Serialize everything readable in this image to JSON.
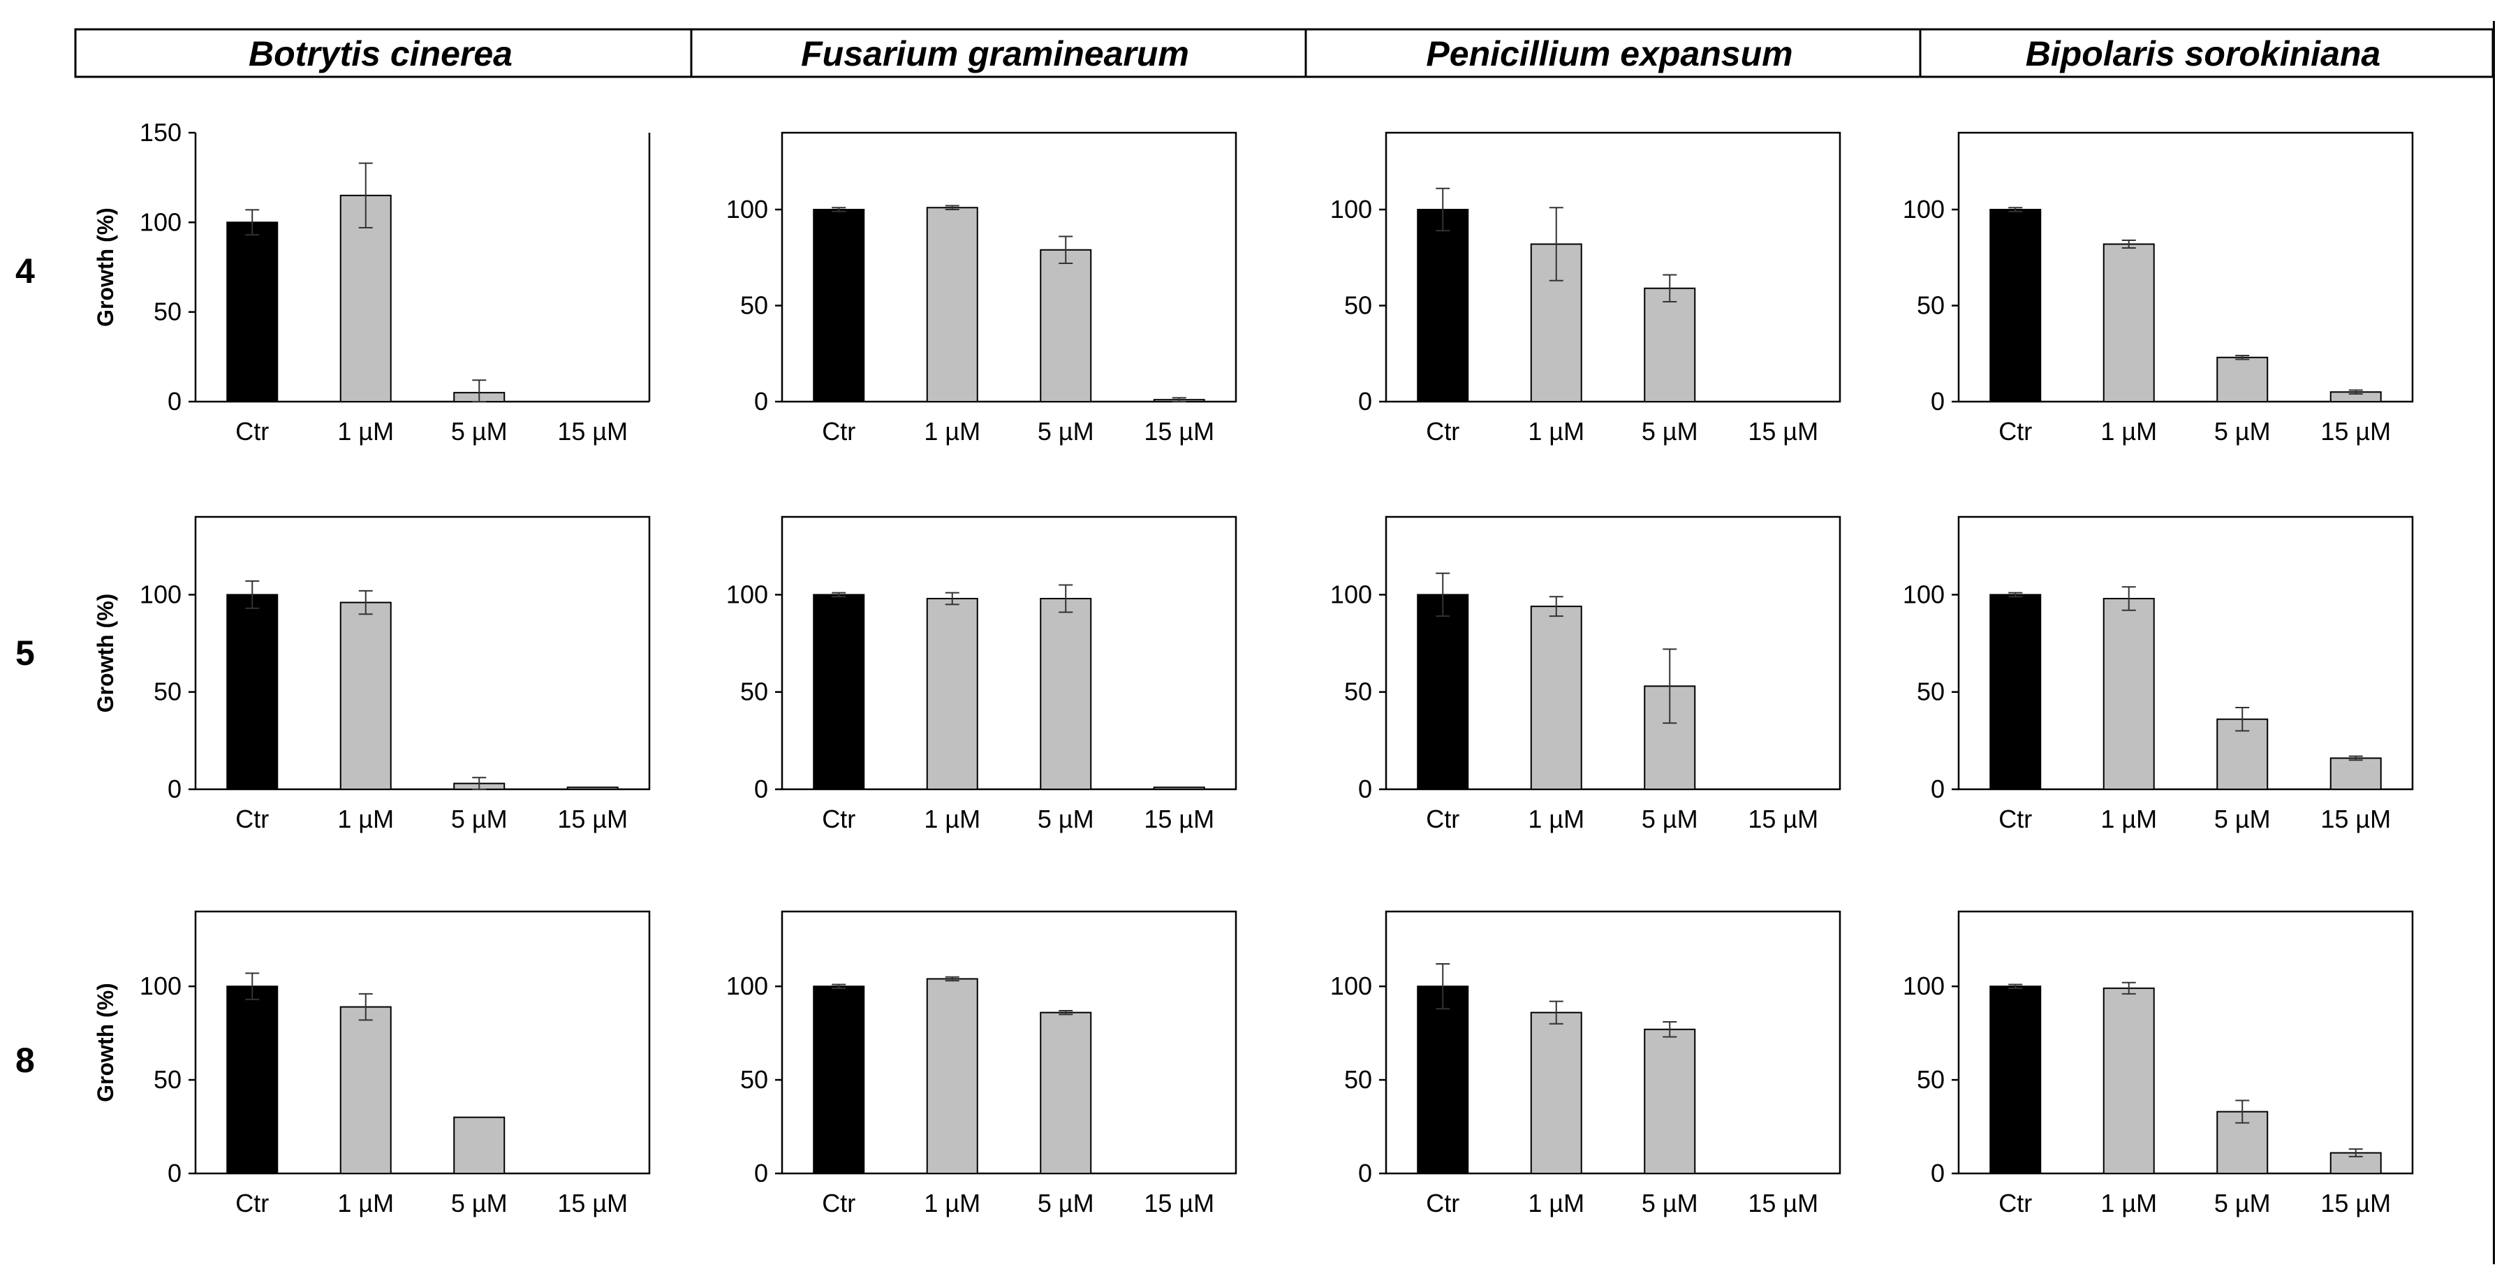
{
  "figure": {
    "columns": [
      "Botrytis cinerea",
      "Fusarium graminearum",
      "Penicillium expansum",
      "Bipolaris sorokiniana"
    ],
    "rows": [
      "4",
      "5",
      "8"
    ],
    "ylabel": "Growth (%)"
  },
  "colors": {
    "control": "#000000",
    "treated": "#c0c0c0",
    "frame": "#000000"
  },
  "chart_data": [
    {
      "type": "bar",
      "row": "4",
      "organism": "Botrytis cinerea",
      "categories": [
        "Ctr",
        "1 µM",
        "5 µM",
        "15 µM"
      ],
      "values": [
        100,
        115,
        5,
        0
      ],
      "errors": [
        7,
        18,
        7,
        0
      ],
      "yticks": [
        0,
        50,
        100,
        150
      ],
      "ylim": [
        0,
        150
      ],
      "ylabel": "Growth (%)",
      "show_ylabel": true,
      "frame": "axes"
    },
    {
      "type": "bar",
      "row": "4",
      "organism": "Fusarium graminearum",
      "categories": [
        "Ctr",
        "1 µM",
        "5 µM",
        "15 µM"
      ],
      "values": [
        100,
        101,
        79,
        1
      ],
      "errors": [
        1,
        1,
        7,
        1
      ],
      "yticks": [
        0,
        50,
        100
      ],
      "ylim": [
        0,
        140
      ],
      "ylabel": "",
      "show_ylabel": false,
      "frame": "box"
    },
    {
      "type": "bar",
      "row": "4",
      "organism": "Penicillium expansum",
      "categories": [
        "Ctr",
        "1 µM",
        "5 µM",
        "15 µM"
      ],
      "values": [
        100,
        82,
        59,
        0
      ],
      "errors": [
        11,
        19,
        7,
        0
      ],
      "yticks": [
        0,
        50,
        100
      ],
      "ylim": [
        0,
        140
      ],
      "ylabel": "",
      "show_ylabel": false,
      "frame": "box"
    },
    {
      "type": "bar",
      "row": "4",
      "organism": "Bipolaris sorokiniana",
      "categories": [
        "Ctr",
        "1 µM",
        "5 µM",
        "15 µM"
      ],
      "values": [
        100,
        82,
        23,
        5
      ],
      "errors": [
        1,
        2,
        1,
        1
      ],
      "yticks": [
        0,
        50,
        100
      ],
      "ylim": [
        0,
        140
      ],
      "ylabel": "",
      "show_ylabel": false,
      "frame": "box"
    },
    {
      "type": "bar",
      "row": "5",
      "organism": "Botrytis cinerea",
      "categories": [
        "Ctr",
        "1 µM",
        "5 µM",
        "15 µM"
      ],
      "values": [
        100,
        96,
        3,
        1
      ],
      "errors": [
        7,
        6,
        3,
        0
      ],
      "yticks": [
        0,
        50,
        100
      ],
      "ylim": [
        0,
        140
      ],
      "ylabel": "Growth (%)",
      "show_ylabel": true,
      "frame": "box"
    },
    {
      "type": "bar",
      "row": "5",
      "organism": "Fusarium graminearum",
      "categories": [
        "Ctr",
        "1 µM",
        "5 µM",
        "15 µM"
      ],
      "values": [
        100,
        98,
        98,
        1
      ],
      "errors": [
        1,
        3,
        7,
        0
      ],
      "yticks": [
        0,
        50,
        100
      ],
      "ylim": [
        0,
        140
      ],
      "ylabel": "",
      "show_ylabel": false,
      "frame": "box"
    },
    {
      "type": "bar",
      "row": "5",
      "organism": "Penicillium expansum",
      "categories": [
        "Ctr",
        "1 µM",
        "5 µM",
        "15 µM"
      ],
      "values": [
        100,
        94,
        53,
        0
      ],
      "errors": [
        11,
        5,
        19,
        0
      ],
      "yticks": [
        0,
        50,
        100
      ],
      "ylim": [
        0,
        140
      ],
      "ylabel": "",
      "show_ylabel": false,
      "frame": "box"
    },
    {
      "type": "bar",
      "row": "5",
      "organism": "Bipolaris sorokiniana",
      "categories": [
        "Ctr",
        "1 µM",
        "5 µM",
        "15 µM"
      ],
      "values": [
        100,
        98,
        36,
        16
      ],
      "errors": [
        1,
        6,
        6,
        1
      ],
      "yticks": [
        0,
        50,
        100
      ],
      "ylim": [
        0,
        140
      ],
      "ylabel": "",
      "show_ylabel": false,
      "frame": "box"
    },
    {
      "type": "bar",
      "row": "8",
      "organism": "Botrytis cinerea",
      "categories": [
        "Ctr",
        "1 µM",
        "5 µM",
        "15 µM"
      ],
      "values": [
        100,
        89,
        30,
        0
      ],
      "errors": [
        7,
        7,
        0,
        0
      ],
      "yticks": [
        0,
        50,
        100
      ],
      "ylim": [
        0,
        140
      ],
      "ylabel": "Growth (%)",
      "show_ylabel": true,
      "frame": "box"
    },
    {
      "type": "bar",
      "row": "8",
      "organism": "Fusarium graminearum",
      "categories": [
        "Ctr",
        "1 µM",
        "5 µM",
        "15 µM"
      ],
      "values": [
        100,
        104,
        86,
        0
      ],
      "errors": [
        1,
        1,
        1,
        0
      ],
      "yticks": [
        0,
        50,
        100
      ],
      "ylim": [
        0,
        140
      ],
      "ylabel": "",
      "show_ylabel": false,
      "frame": "box"
    },
    {
      "type": "bar",
      "row": "8",
      "organism": "Penicillium expansum",
      "categories": [
        "Ctr",
        "1 µM",
        "5 µM",
        "15 µM"
      ],
      "values": [
        100,
        86,
        77,
        0
      ],
      "errors": [
        12,
        6,
        4,
        0
      ],
      "yticks": [
        0,
        50,
        100
      ],
      "ylim": [
        0,
        140
      ],
      "ylabel": "",
      "show_ylabel": false,
      "frame": "box"
    },
    {
      "type": "bar",
      "row": "8",
      "organism": "Bipolaris sorokiniana",
      "categories": [
        "Ctr",
        "1 µM",
        "5 µM",
        "15 µM"
      ],
      "values": [
        100,
        99,
        33,
        11
      ],
      "errors": [
        1,
        3,
        6,
        2
      ],
      "yticks": [
        0,
        50,
        100
      ],
      "ylim": [
        0,
        140
      ],
      "ylabel": "",
      "show_ylabel": false,
      "frame": "box"
    }
  ]
}
